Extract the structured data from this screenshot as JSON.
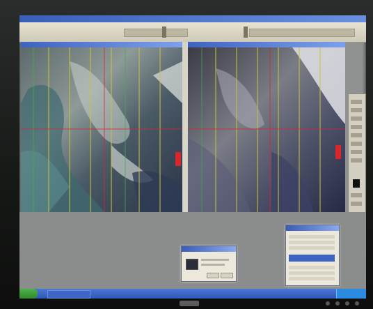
{
  "colors": {
    "title_bar": "#3b5fb8",
    "toolbar": "#e0dccc",
    "grid_vertical": "#c9c43a",
    "grid_horizontal": "#d8262a",
    "grid_green": "#3fae4a",
    "taskbar": "#3a66c6",
    "start": "#3f9e3c"
  },
  "icons": {
    "start": "start-button-icon",
    "tray": "system-tray-icon"
  }
}
